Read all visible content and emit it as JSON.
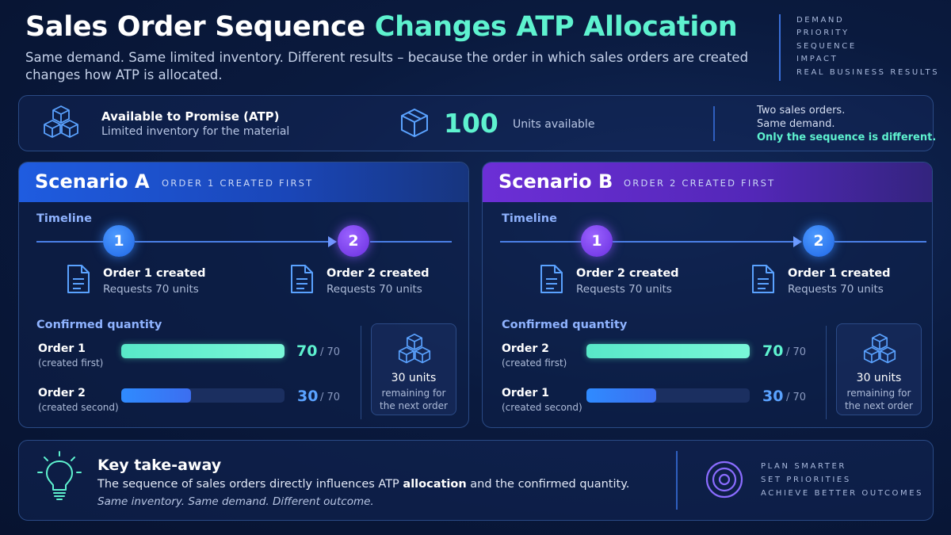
{
  "header": {
    "title_white": "Sales Order Sequence",
    "title_green": "Changes ATP Allocation",
    "subtitle": "Same demand. Same limited inventory. Different results – because the order in which sales orders are created changes how ATP is allocated.",
    "side_list": [
      "DEMAND",
      "PRIORITY",
      "SEQUENCE",
      "IMPACT",
      "REAL BUSINESS RESULTS"
    ]
  },
  "atp": {
    "title": "Available to Promise (ATP)",
    "subtitle": "Limited inventory for the material",
    "number": "100",
    "units_label": "Units available",
    "note_line1": "Two sales orders.",
    "note_line2": "Same demand.",
    "note_highlight": "Only the sequence is different."
  },
  "scenarios": [
    {
      "title": "Scenario A",
      "tag": "ORDER 1 CREATED FIRST",
      "timeline_label": "Timeline",
      "steps": [
        {
          "num": "1",
          "title": "Order 1 created",
          "sub": "Requests 70 units"
        },
        {
          "num": "2",
          "title": "Order 2 created",
          "sub": "Requests 70 units"
        }
      ],
      "confirmed_label": "Confirmed quantity",
      "rows": [
        {
          "label": "Order 1",
          "sub": "(created first)",
          "value": "70",
          "max": "/ 70",
          "fraction": 1.0
        },
        {
          "label": "Order 2",
          "sub": "(created second)",
          "value": "30",
          "max": "/ 70",
          "fraction": 0.4286
        }
      ],
      "remaining_title": "30 units",
      "remaining_sub1": "remaining for",
      "remaining_sub2": "the next order"
    },
    {
      "title": "Scenario B",
      "tag": "ORDER 2 CREATED FIRST",
      "timeline_label": "Timeline",
      "steps": [
        {
          "num": "1",
          "title": "Order 2 created",
          "sub": "Requests 70 units"
        },
        {
          "num": "2",
          "title": "Order 1 created",
          "sub": "Requests 70 units"
        }
      ],
      "confirmed_label": "Confirmed quantity",
      "rows": [
        {
          "label": "Order 2",
          "sub": "(created first)",
          "value": "70",
          "max": "/ 70",
          "fraction": 1.0
        },
        {
          "label": "Order 1",
          "sub": "(created second)",
          "value": "30",
          "max": "/ 70",
          "fraction": 0.4286
        }
      ],
      "remaining_title": "30 units",
      "remaining_sub1": "remaining for",
      "remaining_sub2": "the next order"
    }
  ],
  "takeaway": {
    "title": "Key take-away",
    "body_pre": "The sequence of sales orders directly influences ATP ",
    "body_bold": "allocation",
    "body_post": " and the confirmed quantity.",
    "emphasis": "Same inventory. Same demand. Different outcome.",
    "list": [
      "PLAN SMARTER",
      "SET PRIORITIES",
      "ACHIEVE BETTER OUTCOMES"
    ]
  },
  "colors": {
    "accent_green": "#5ef2cf",
    "accent_blue": "#1f5ce0",
    "accent_purple": "#6c2fd6"
  }
}
